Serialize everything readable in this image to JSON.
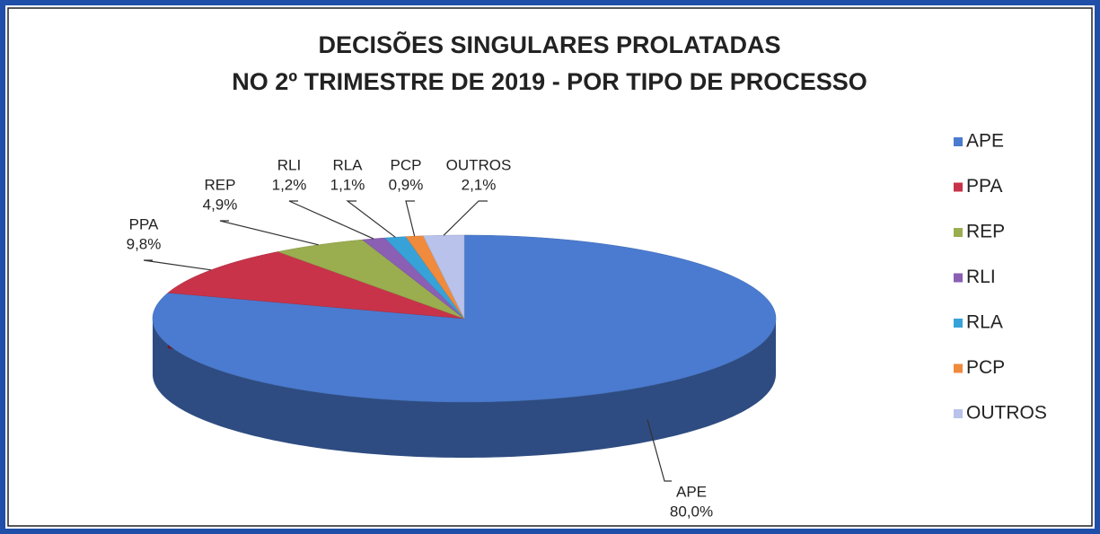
{
  "chart_data": {
    "type": "pie3d",
    "title": [
      "DECISÕES SINGULARES PROLATADAS",
      "NO 2º TRIMESTRE DE 2019 - POR TIPO DE PROCESSO"
    ],
    "categories": [
      "APE",
      "PPA",
      "REP",
      "RLI",
      "RLA",
      "PCP",
      "OUTROS"
    ],
    "values": [
      80.0,
      9.8,
      4.9,
      1.2,
      1.1,
      0.9,
      2.1
    ],
    "value_labels": [
      "80,0%",
      "9,8%",
      "4,9%",
      "1,2%",
      "1,1%",
      "0,9%",
      "2,1%"
    ],
    "colors": [
      "#4a7bd0",
      "#c8334a",
      "#9aad4f",
      "#8a5fb4",
      "#37a2d8",
      "#f08a3c",
      "#b8c2ea"
    ],
    "legend": "right"
  }
}
